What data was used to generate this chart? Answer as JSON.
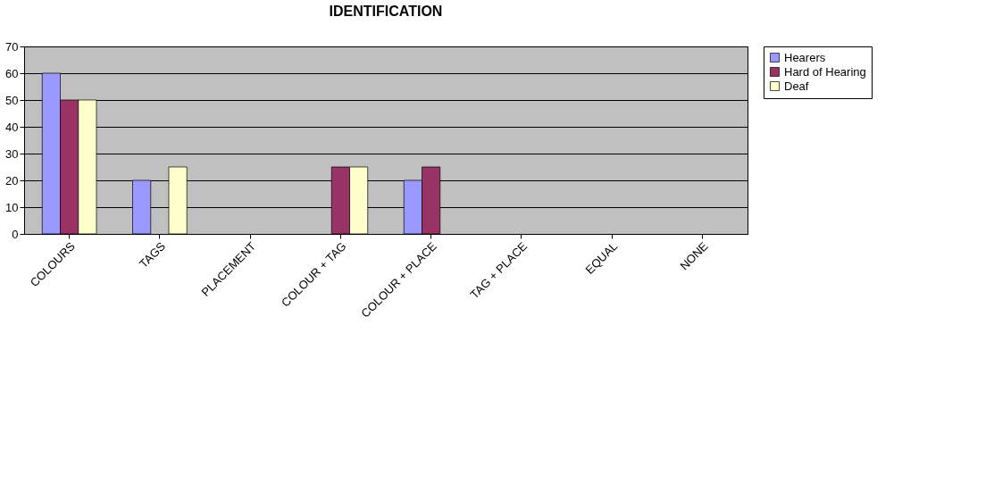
{
  "chart_data": {
    "type": "bar",
    "title": "IDENTIFICATION",
    "categories": [
      "COLOURS",
      "TAGS",
      "PLACEMENT",
      "COLOUR + TAG",
      "COLOUR + PLACE",
      "TAG + PLACE",
      "EQUAL",
      "NONE"
    ],
    "series": [
      {
        "name": "Hearers",
        "color": "#9999ff",
        "values": [
          60,
          20,
          0,
          0,
          20,
          0,
          0,
          0
        ]
      },
      {
        "name": "Hard of Hearing",
        "color": "#993366",
        "values": [
          50,
          0,
          0,
          25,
          25,
          0,
          0,
          0
        ]
      },
      {
        "name": "Deaf",
        "color": "#ffffcc",
        "values": [
          50,
          25,
          0,
          25,
          0,
          0,
          0,
          0
        ]
      }
    ],
    "ylim": [
      0,
      70
    ],
    "yticks": [
      0,
      10,
      20,
      30,
      40,
      50,
      60,
      70
    ],
    "grid": "y",
    "legend": "right"
  }
}
